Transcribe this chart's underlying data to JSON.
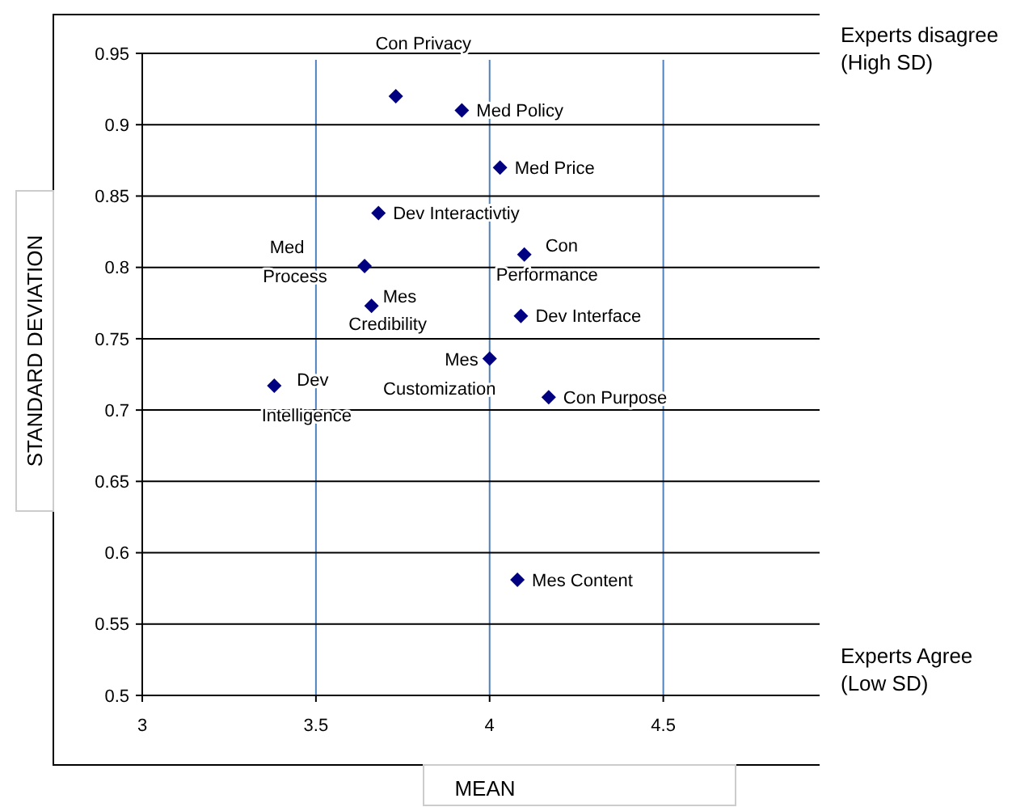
{
  "chart_data": {
    "type": "scatter",
    "xlabel": "MEAN",
    "ylabel": "STANDARD DEVIATION",
    "x": [
      3.73,
      3.92,
      4.03,
      3.68,
      3.64,
      4.1,
      3.66,
      4.09,
      4.0,
      3.38,
      4.17,
      4.08
    ],
    "series": [
      {
        "color": "#000080",
        "values": [
          0.92,
          0.91,
          0.87,
          0.838,
          0.801,
          0.809,
          0.773,
          0.766,
          0.736,
          0.717,
          0.709,
          0.581
        ]
      }
    ],
    "marker": "diamond",
    "grid": true,
    "xlim": [
      3,
      4.95
    ],
    "xticks": [
      3,
      3.5,
      4,
      4.5
    ],
    "ylim": [
      0.5,
      0.95
    ],
    "yticks": [
      0.5,
      0.55,
      0.6,
      0.65,
      0.7,
      0.75,
      0.8,
      0.85,
      0.9,
      0.95
    ],
    "annotations": [
      {
        "text": "Con Privacy",
        "x": 3.73,
        "y": 0.92
      },
      {
        "text": "Med Policy",
        "x": 3.92,
        "y": 0.91
      },
      {
        "text": "Med Price",
        "x": 4.03,
        "y": 0.87
      },
      {
        "text": "Dev Interactivtiy",
        "x": 3.68,
        "y": 0.838
      },
      {
        "text": "Med Process",
        "x": 3.64,
        "y": 0.801
      },
      {
        "text": "Con Performance",
        "x": 4.1,
        "y": 0.809
      },
      {
        "text": "Mes Credibility",
        "x": 3.66,
        "y": 0.773
      },
      {
        "text": "Dev Interface",
        "x": 4.09,
        "y": 0.766
      },
      {
        "text": "Mes Customization",
        "x": 4.0,
        "y": 0.736
      },
      {
        "text": "Dev Intelligence",
        "x": 3.38,
        "y": 0.717
      },
      {
        "text": "Con Purpose",
        "x": 4.17,
        "y": 0.709
      },
      {
        "text": "Mes Content",
        "x": 4.08,
        "y": 0.581
      },
      "Experts disagree\n(High SD)",
      "Experts Agree\n(Low SD)"
    ]
  }
}
